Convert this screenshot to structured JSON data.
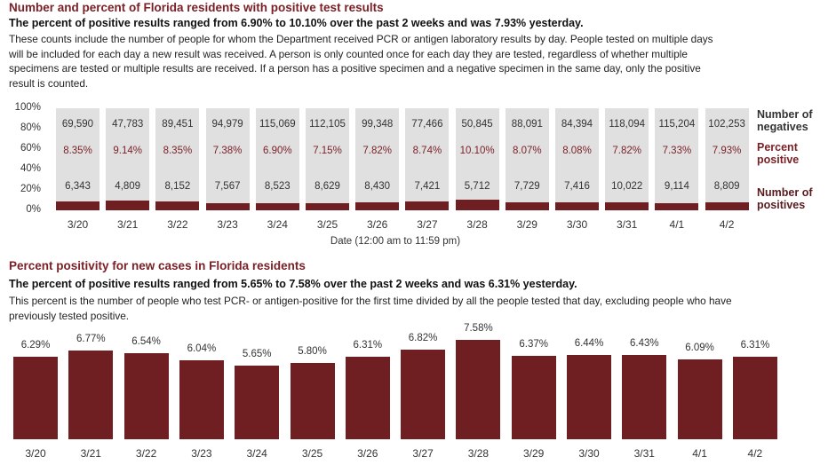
{
  "section1": {
    "title": "Number and percent of Florida residents with positive test results",
    "subtitle": "The percent of positive results ranged from 6.90% to 10.10% over the past 2 weeks and was 7.93% yesterday.",
    "description": "These counts include the number of people for whom the Department received PCR or antigen laboratory results by day. People tested on multiple days will be included for each day a new result was received. A person is only counted once for each day they are tested, regardless of whether multiple specimens are tested or multiple results are received. If a person has a positive specimen and a negative specimen in the same day, only the positive result is counted.",
    "legend": {
      "negatives": "Number of negatives",
      "percent": "Percent positive",
      "positives": "Number of positives"
    },
    "colors": {
      "negatives": "#e0e0e0",
      "positives": "#6f1e22",
      "percent_text": "#7a1f25"
    }
  },
  "section2": {
    "title": "Percent positivity for new cases in Florida residents",
    "subtitle": "The percent of positive results ranged from 5.65% to 7.58% over the past 2 weeks and was 6.31% yesterday.",
    "description": "This percent is the number of people who test PCR- or antigen-positive for the first time divided by all the people tested that day, excluding people who have previously tested positive.",
    "bar_color": "#6f1e22"
  },
  "chart_data": [
    {
      "type": "bar",
      "stacked": true,
      "title": "Number and percent of Florida residents with positive test results",
      "xlabel": "Date (12:00 am to 11:59 pm)",
      "ylabel": "",
      "ylim": [
        0,
        100
      ],
      "yticks": [
        "100%",
        "80%",
        "60%",
        "40%",
        "20%",
        "0%"
      ],
      "categories": [
        "3/20",
        "3/21",
        "3/22",
        "3/23",
        "3/24",
        "3/25",
        "3/26",
        "3/27",
        "3/28",
        "3/29",
        "3/30",
        "3/31",
        "4/1",
        "4/2"
      ],
      "series": [
        {
          "name": "Number of negatives",
          "values": [
            69590,
            47783,
            89451,
            94979,
            115069,
            112105,
            99348,
            77466,
            50845,
            88091,
            84394,
            118094,
            115204,
            102253
          ]
        },
        {
          "name": "Percent positive",
          "values": [
            "8.35%",
            "9.14%",
            "8.35%",
            "7.38%",
            "6.90%",
            "7.15%",
            "7.82%",
            "8.74%",
            "10.10%",
            "8.07%",
            "8.08%",
            "7.82%",
            "7.33%",
            "7.93%"
          ]
        },
        {
          "name": "Number of positives",
          "values": [
            6343,
            4809,
            8152,
            7567,
            8523,
            8629,
            8430,
            7421,
            5712,
            7729,
            7416,
            10022,
            9114,
            8809
          ]
        }
      ],
      "display": {
        "negatives": [
          "69,590",
          "47,783",
          "89,451",
          "94,979",
          "115,069",
          "112,105",
          "99,348",
          "77,466",
          "50,845",
          "88,091",
          "84,394",
          "118,094",
          "115,204",
          "102,253"
        ],
        "positives": [
          "6,343",
          "4,809",
          "8,152",
          "7,567",
          "8,523",
          "8,629",
          "8,430",
          "7,421",
          "5,712",
          "7,729",
          "7,416",
          "10,022",
          "9,114",
          "8,809"
        ]
      },
      "percent_values": [
        8.35,
        9.14,
        8.35,
        7.38,
        6.9,
        7.15,
        7.82,
        8.74,
        10.1,
        8.07,
        8.08,
        7.82,
        7.33,
        7.93
      ],
      "legend_position": "right",
      "grid": false
    },
    {
      "type": "bar",
      "title": "Percent positivity for new cases in Florida residents",
      "xlabel": "",
      "ylabel": "",
      "categories": [
        "3/20",
        "3/21",
        "3/22",
        "3/23",
        "3/24",
        "3/25",
        "3/26",
        "3/27",
        "3/28",
        "3/29",
        "3/30",
        "3/31",
        "4/1",
        "4/2"
      ],
      "values": [
        6.29,
        6.77,
        6.54,
        6.04,
        5.65,
        5.8,
        6.31,
        6.82,
        7.58,
        6.37,
        6.44,
        6.43,
        6.09,
        6.31
      ],
      "labels": [
        "6.29%",
        "6.77%",
        "6.54%",
        "6.04%",
        "5.65%",
        "5.80%",
        "6.31%",
        "6.82%",
        "7.58%",
        "6.37%",
        "6.44%",
        "6.43%",
        "6.09%",
        "6.31%"
      ],
      "grid": false
    }
  ]
}
